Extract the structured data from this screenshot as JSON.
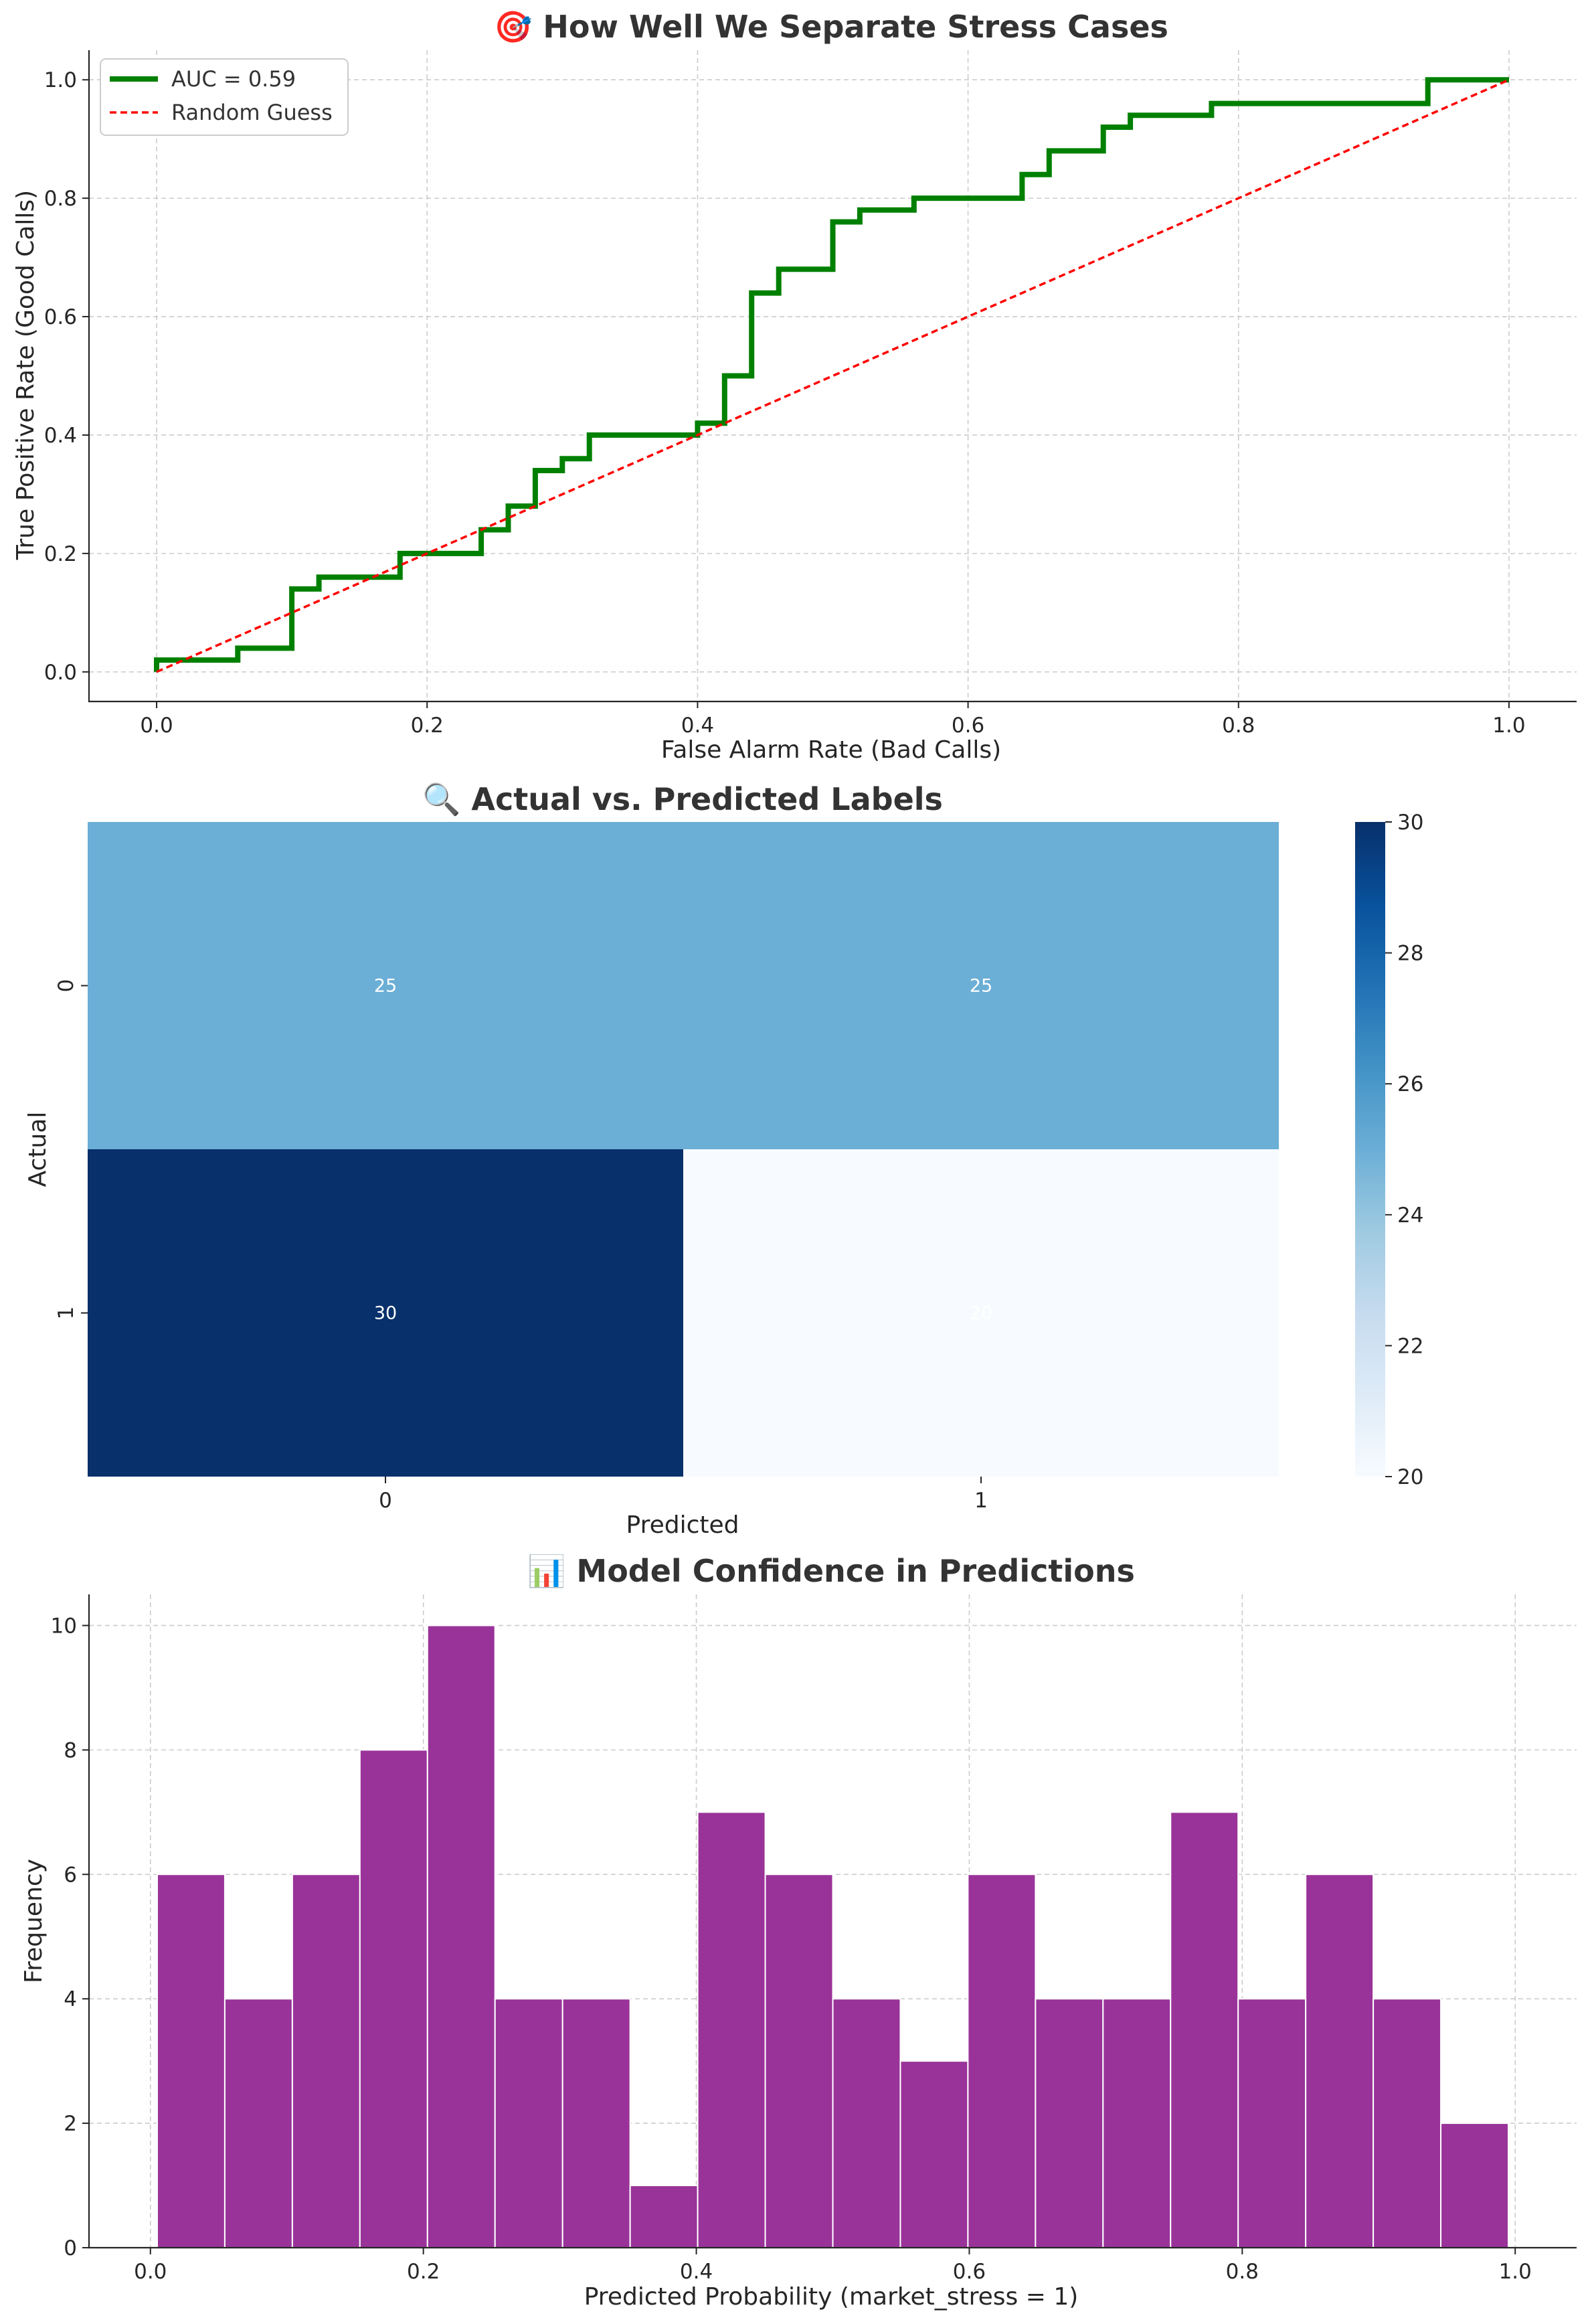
{
  "chart_data": [
    {
      "type": "line",
      "title": "🎯 How Well We Separate Stress Cases",
      "xlabel": "False Alarm Rate (Bad Calls)",
      "ylabel": "True Positive Rate (Good Calls)",
      "xlim": [
        -0.05,
        1.05
      ],
      "ylim": [
        -0.05,
        1.05
      ],
      "xticks": [
        "0.0",
        "0.2",
        "0.4",
        "0.6",
        "0.8",
        "1.0"
      ],
      "yticks": [
        "0.0",
        "0.2",
        "0.4",
        "0.6",
        "0.8",
        "1.0"
      ],
      "grid": true,
      "legend_position": "top-left",
      "series": [
        {
          "name": "AUC = 0.59",
          "color": "#008000",
          "style": "solid step",
          "x": [
            0.0,
            0.0,
            0.06,
            0.06,
            0.1,
            0.1,
            0.12,
            0.12,
            0.18,
            0.18,
            0.24,
            0.24,
            0.26,
            0.26,
            0.28,
            0.28,
            0.3,
            0.3,
            0.32,
            0.32,
            0.4,
            0.4,
            0.42,
            0.42,
            0.44,
            0.44,
            0.46,
            0.46,
            0.5,
            0.5,
            0.52,
            0.52,
            0.56,
            0.56,
            0.64,
            0.64,
            0.66,
            0.66,
            0.7,
            0.7,
            0.72,
            0.72,
            0.78,
            0.78,
            0.94,
            0.94,
            1.0
          ],
          "y": [
            0.0,
            0.02,
            0.02,
            0.04,
            0.04,
            0.14,
            0.14,
            0.16,
            0.16,
            0.2,
            0.2,
            0.24,
            0.24,
            0.28,
            0.28,
            0.34,
            0.34,
            0.36,
            0.36,
            0.4,
            0.4,
            0.42,
            0.42,
            0.5,
            0.5,
            0.64,
            0.64,
            0.68,
            0.68,
            0.76,
            0.76,
            0.78,
            0.78,
            0.8,
            0.8,
            0.84,
            0.84,
            0.88,
            0.88,
            0.92,
            0.92,
            0.94,
            0.94,
            0.96,
            0.96,
            1.0,
            1.0
          ]
        },
        {
          "name": "Random Guess",
          "color": "#ff0000",
          "style": "dashed",
          "x": [
            0.0,
            1.0
          ],
          "y": [
            0.0,
            1.0
          ]
        }
      ]
    },
    {
      "type": "heatmap",
      "title": "🔍 Actual vs. Predicted Labels",
      "xlabel": "Predicted",
      "ylabel": "Actual",
      "x_categories": [
        "0",
        "1"
      ],
      "y_categories": [
        "0",
        "1"
      ],
      "values": [
        [
          25,
          25
        ],
        [
          30,
          20
        ]
      ],
      "colormap": "Blues",
      "colorbar": {
        "min": 20,
        "max": 30,
        "ticks": [
          "20",
          "22",
          "24",
          "26",
          "28",
          "30"
        ]
      }
    },
    {
      "type": "bar",
      "title": "📊 Model Confidence in Predictions",
      "xlabel": "Predicted Probability (market_stress = 1)",
      "ylabel": "Frequency",
      "color": "#993399",
      "bin_edges": [
        0.005,
        0.0545,
        0.104,
        0.1535,
        0.203,
        0.2525,
        0.302,
        0.3515,
        0.401,
        0.4505,
        0.5,
        0.5495,
        0.599,
        0.6485,
        0.698,
        0.7475,
        0.797,
        0.8465,
        0.896,
        0.9455,
        0.995
      ],
      "values": [
        6,
        4,
        6,
        8,
        10,
        4,
        4,
        1,
        7,
        6,
        4,
        3,
        6,
        4,
        4,
        7,
        4,
        6,
        4,
        2
      ],
      "xlim": [
        -0.045,
        1.045
      ],
      "ylim": [
        0,
        10.5
      ],
      "xticks": [
        "0.0",
        "0.2",
        "0.4",
        "0.6",
        "0.8",
        "1.0"
      ],
      "yticks": [
        "0",
        "2",
        "4",
        "6",
        "8",
        "10"
      ],
      "grid": true
    }
  ]
}
